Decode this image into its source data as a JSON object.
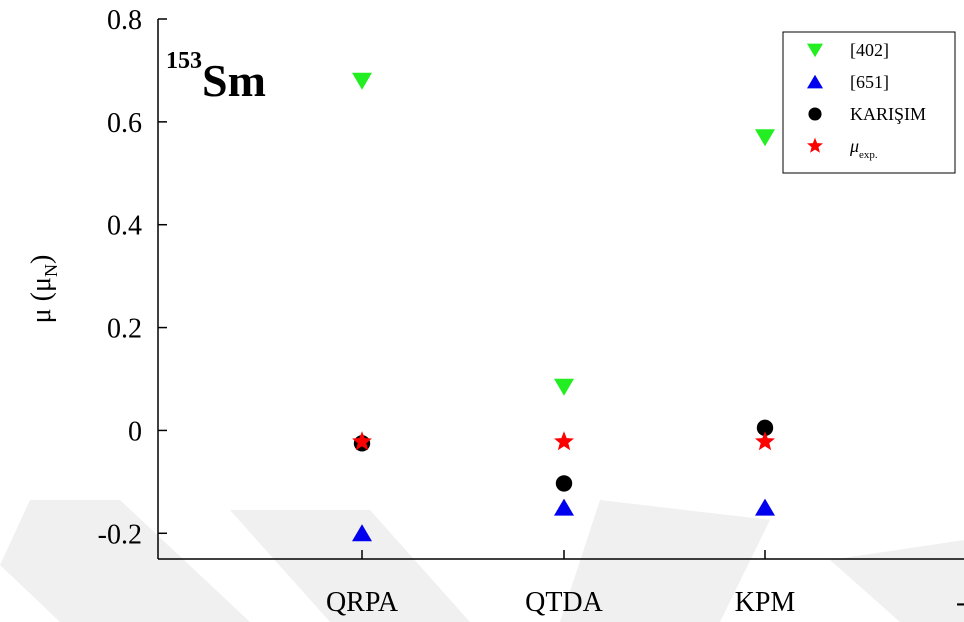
{
  "chart_data": {
    "type": "scatter",
    "title": "Sm",
    "title_superscript": "153",
    "ylabel": "μ (μ",
    "ylabel_subscript": "N",
    "ylabel_close": ")",
    "ylim": [
      -0.25,
      0.8
    ],
    "yticks": [
      -0.2,
      0,
      0.2,
      0.4,
      0.6,
      0.8
    ],
    "ytick_labels": [
      "-0.2",
      "0",
      "0.2",
      "0.4",
      "0.6",
      "0.8"
    ],
    "categories": [
      "QRPA",
      "QTDA",
      "KPM"
    ],
    "extra_tick_label": "-",
    "grid": false,
    "legend_position": "top-right",
    "series": [
      {
        "name": "[402]",
        "marker": "triangle-down",
        "color": "#22ee22",
        "values": [
          0.68,
          0.085,
          0.57
        ]
      },
      {
        "name": "[651]",
        "marker": "triangle-up",
        "color": "#0000ee",
        "values": [
          -0.2,
          -0.15,
          -0.15
        ]
      },
      {
        "name": "KARIŞIM",
        "marker": "circle",
        "color": "#000000",
        "values": [
          -0.025,
          -0.103,
          0.005
        ]
      },
      {
        "name": "μ",
        "name_subscript": "exp.",
        "marker": "star",
        "color": "#ff0000",
        "values": [
          -0.022,
          -0.022,
          -0.022
        ]
      }
    ]
  }
}
